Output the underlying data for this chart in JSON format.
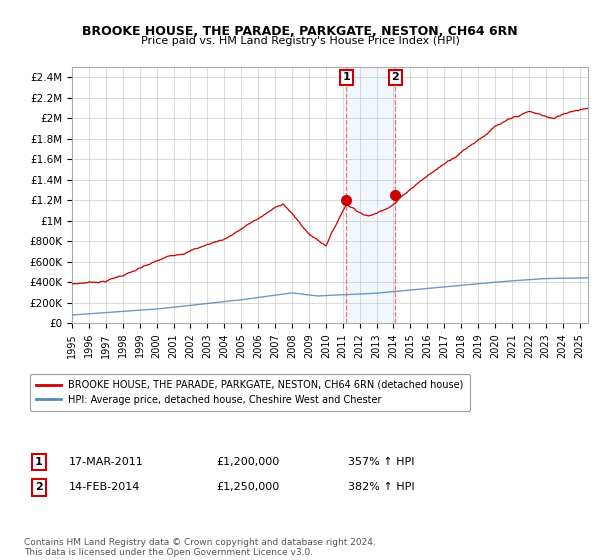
{
  "title": "BROOKE HOUSE, THE PARADE, PARKGATE, NESTON, CH64 6RN",
  "subtitle": "Price paid vs. HM Land Registry's House Price Index (HPI)",
  "ylabel_ticks": [
    "£0",
    "£200K",
    "£400K",
    "£600K",
    "£800K",
    "£1M",
    "£1.2M",
    "£1.4M",
    "£1.6M",
    "£1.8M",
    "£2M",
    "£2.2M",
    "£2.4M"
  ],
  "ytick_values": [
    0,
    200000,
    400000,
    600000,
    800000,
    1000000,
    1200000,
    1400000,
    1600000,
    1800000,
    2000000,
    2200000,
    2400000
  ],
  "ylim": [
    0,
    2500000
  ],
  "xlim_start": 1995.0,
  "xlim_end": 2025.5,
  "legend_line1": "BROOKE HOUSE, THE PARADE, PARKGATE, NESTON, CH64 6RN (detached house)",
  "legend_line2": "HPI: Average price, detached house, Cheshire West and Chester",
  "sale1_label": "1",
  "sale1_date": "17-MAR-2011",
  "sale1_price": "£1,200,000",
  "sale1_hpi": "357% ↑ HPI",
  "sale1_x": 2011.21,
  "sale1_y": 1200000,
  "sale2_label": "2",
  "sale2_date": "14-FEB-2014",
  "sale2_price": "£1,250,000",
  "sale2_hpi": "382% ↑ HPI",
  "sale2_x": 2014.12,
  "sale2_y": 1250000,
  "highlight_x1": 2011.21,
  "highlight_x2": 2014.12,
  "line_color_hpi": "#5588bb",
  "line_color_price": "#cc0000",
  "copyright_text": "Contains HM Land Registry data © Crown copyright and database right 2024.\nThis data is licensed under the Open Government Licence v3.0."
}
